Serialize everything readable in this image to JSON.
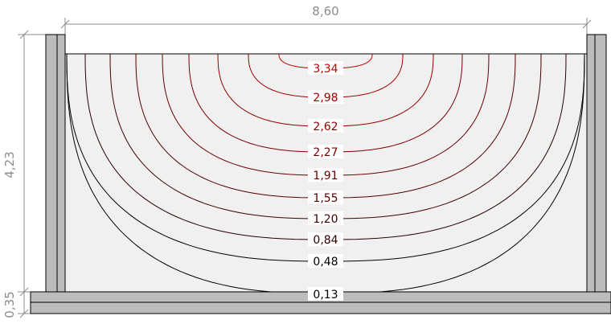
{
  "dimensions": {
    "width_label": "8,60",
    "height_label": "4,23",
    "slab_label": "0,35"
  },
  "contours": [
    {
      "label": "3,34",
      "value": 3.34,
      "color": "#c00000"
    },
    {
      "label": "2,98",
      "value": 2.98,
      "color": "#a30000"
    },
    {
      "label": "2,62",
      "value": 2.62,
      "color": "#8f0000"
    },
    {
      "label": "2,27",
      "value": 2.27,
      "color": "#7a0000"
    },
    {
      "label": "1,91",
      "value": 1.91,
      "color": "#6a0000"
    },
    {
      "label": "1,55",
      "value": 1.55,
      "color": "#520000"
    },
    {
      "label": "1,20",
      "value": 1.2,
      "color": "#3d0000"
    },
    {
      "label": "0,84",
      "value": 0.84,
      "color": "#2a0000"
    },
    {
      "label": "0,48",
      "value": 0.48,
      "color": "#000000"
    },
    {
      "label": "0,13",
      "value": 0.13,
      "color": "#000000"
    }
  ],
  "colors": {
    "fill": "#f0f0f0",
    "wall": "#bcbcbc",
    "outline": "#000000",
    "dimension": "#8c8c8c"
  }
}
